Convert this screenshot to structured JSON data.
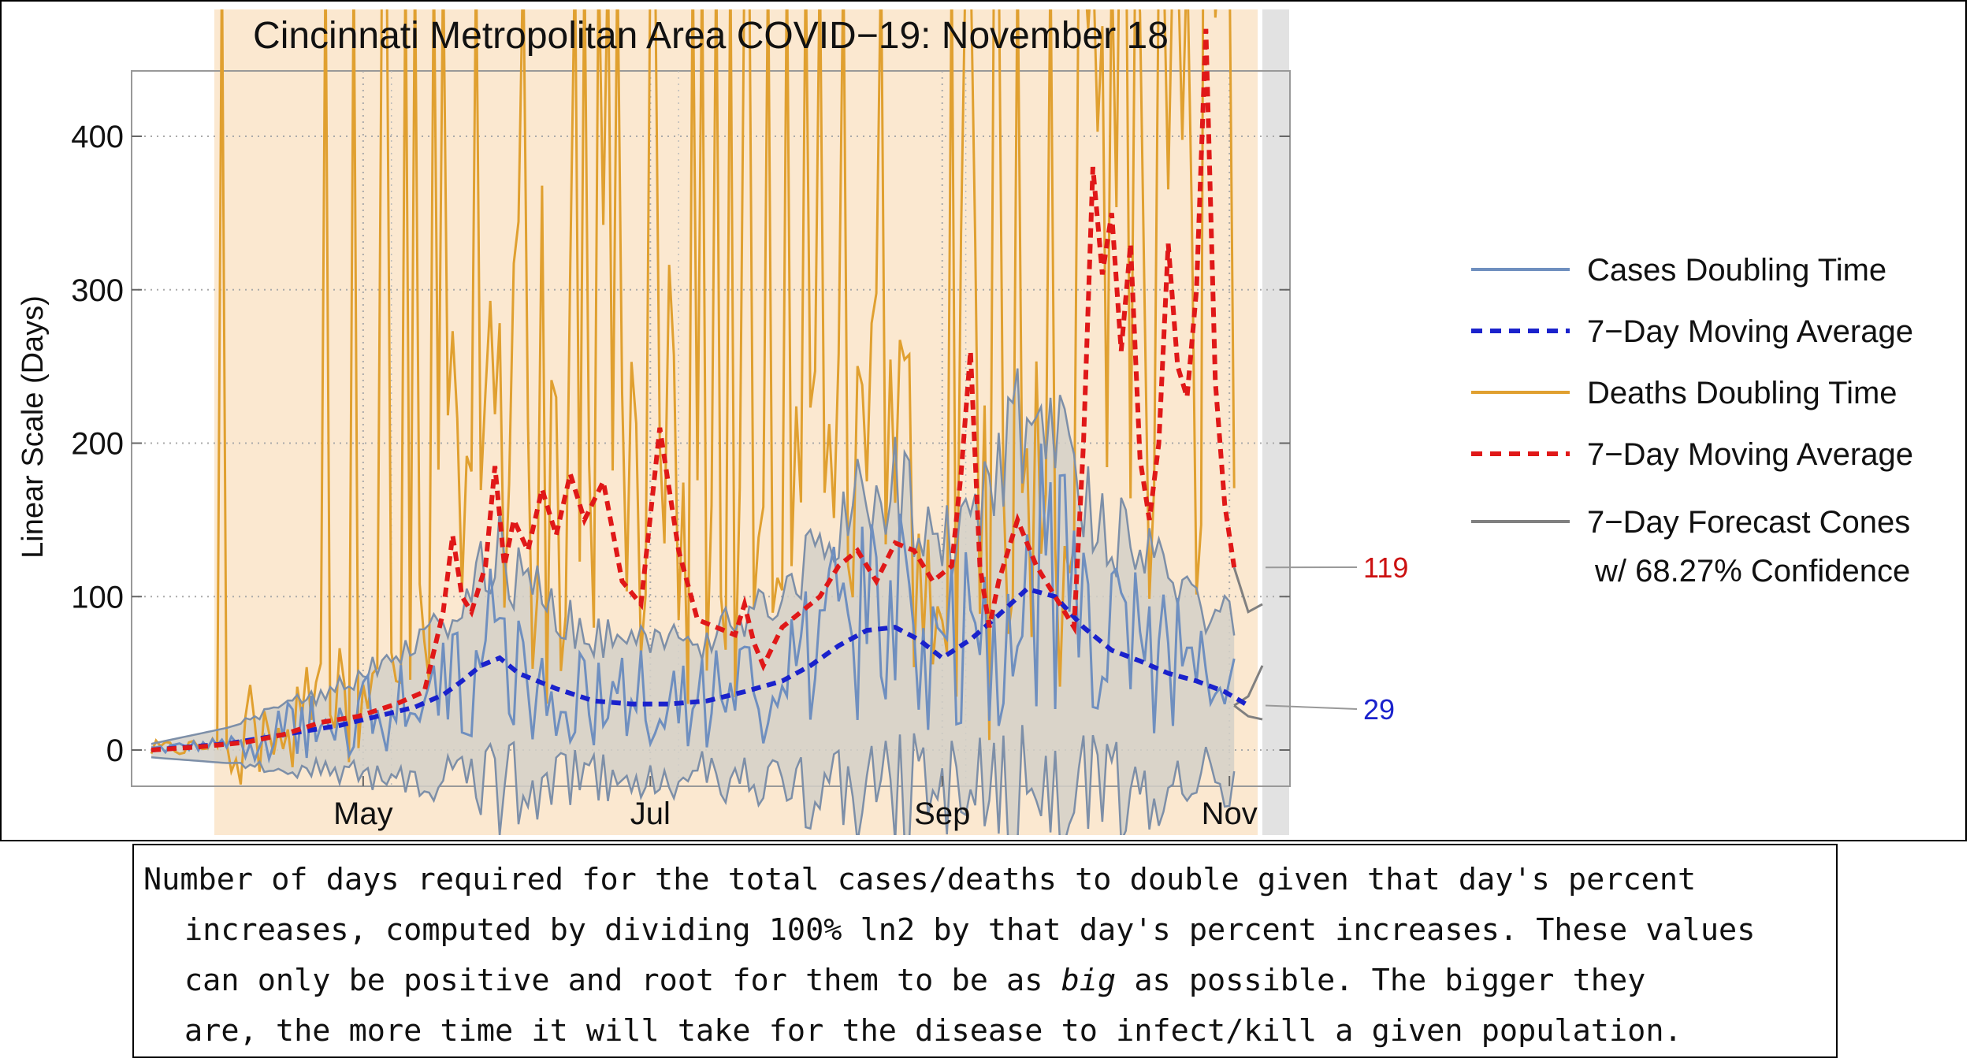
{
  "chart_data": {
    "type": "line",
    "title": "Cincinnati Metropolitan Area COVID−19: November 18",
    "xlabel": "",
    "ylabel": "Linear Scale (Days)",
    "xlim_days": [
      0,
      236
    ],
    "ylim": [
      -22,
      440
    ],
    "y_ticks": [
      0,
      100,
      200,
      300,
      400
    ],
    "x_ticks": [
      {
        "label": "May",
        "day": 45
      },
      {
        "label": "Jul",
        "day": 106
      },
      {
        "label": "Sep",
        "day": 168
      },
      {
        "label": "Nov",
        "day": 229
      }
    ],
    "x_minor_gridlines_days": [
      51,
      112,
      173
    ],
    "data_end_day": 230,
    "forecast_end_day": 236,
    "legend": [
      {
        "label": "Cases Doubling Time",
        "color": "#6f8fbf",
        "style": "solid"
      },
      {
        "label": "7−Day Moving Average",
        "color": "#1a22cc",
        "style": "dashed"
      },
      {
        "label": "Deaths Doubling Time",
        "color": "#e0a030",
        "style": "solid"
      },
      {
        "label": "7−Day Moving Average",
        "color": "#e01818",
        "style": "dashed"
      },
      {
        "label": "7−Day Forecast Cones",
        "label2": "w/ 68.27% Confidence",
        "color": "#808080",
        "style": "solid"
      }
    ],
    "end_labels": [
      {
        "text": "119",
        "value": 119,
        "color": "#cc1111"
      },
      {
        "text": "29",
        "value": 29,
        "color": "#1a22cc"
      }
    ],
    "series": [
      {
        "name": "Cases 7-Day Moving Average",
        "color": "#1a22cc",
        "dashed": true,
        "x": [
          0,
          8,
          16,
          24,
          32,
          40,
          48,
          56,
          62,
          66,
          70,
          74,
          78,
          86,
          94,
          102,
          110,
          118,
          126,
          134,
          140,
          146,
          152,
          158,
          163,
          168,
          174,
          180,
          186,
          192,
          198,
          204,
          210,
          216,
          222,
          228,
          233
        ],
        "y": [
          0,
          2,
          4,
          8,
          12,
          16,
          22,
          28,
          36,
          45,
          55,
          60,
          50,
          40,
          32,
          30,
          30,
          32,
          38,
          45,
          55,
          68,
          78,
          80,
          72,
          60,
          72,
          88,
          105,
          100,
          80,
          65,
          58,
          50,
          45,
          38,
          29
        ]
      },
      {
        "name": "Deaths 7-Day Moving Average",
        "color": "#e01818",
        "dashed": true,
        "x": [
          0,
          10,
          20,
          28,
          36,
          44,
          52,
          58,
          62,
          64,
          66,
          68,
          71,
          73,
          75,
          77,
          80,
          83,
          86,
          89,
          92,
          96,
          100,
          104,
          108,
          112,
          116,
          120,
          124,
          126,
          128,
          130,
          134,
          138,
          142,
          146,
          150,
          154,
          158,
          162,
          166,
          170,
          172,
          174,
          176,
          178,
          180,
          184,
          188,
          192,
          196,
          198,
          200,
          202,
          204,
          206,
          208,
          210,
          212,
          214,
          216,
          218,
          220,
          222,
          224,
          226,
          228,
          230
        ],
        "y": [
          0,
          2,
          5,
          10,
          18,
          22,
          30,
          38,
          90,
          140,
          100,
          90,
          120,
          185,
          120,
          150,
          130,
          170,
          140,
          180,
          150,
          175,
          110,
          95,
          210,
          130,
          85,
          80,
          75,
          95,
          70,
          55,
          80,
          90,
          100,
          120,
          130,
          110,
          135,
          130,
          110,
          120,
          180,
          260,
          120,
          80,
          110,
          150,
          120,
          100,
          80,
          200,
          380,
          310,
          350,
          260,
          330,
          190,
          150,
          200,
          330,
          250,
          230,
          300,
          470,
          240,
          160,
          119
        ]
      }
    ]
  },
  "caption": {
    "line1": "Number of days required for the total cases/deaths to double given that day's percent",
    "line2": "increases, computed by dividing 100% ln2 by that day's percent increases. These values",
    "line3_pre": "can only be positive and root for them to be as ",
    "line3_em": "big",
    "line3_post": " as possible. The bigger they",
    "line4": "are, the more time it will take for the disease to infect/kill a given population."
  }
}
